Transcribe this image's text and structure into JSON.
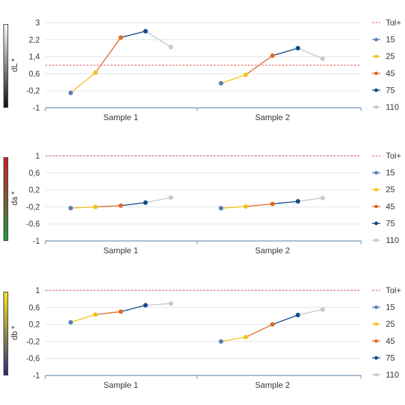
{
  "colors": {
    "15": "#5b7db8",
    "25": "#f4c21b",
    "45": "#e06a25",
    "75": "#0e4c8a",
    "110": "#c7c9cc",
    "tol": "#d94c4c",
    "grid": "#dfe3e8",
    "axis": "#6f8fb0",
    "text": "#333333"
  },
  "legend": {
    "tol_label": "Tol+",
    "items": [
      "15",
      "25",
      "45",
      "75",
      "110"
    ]
  },
  "chart_data": [
    {
      "type": "line",
      "ylabel": "dL *",
      "ylim": [
        -1,
        3
      ],
      "yticks": [
        "3",
        "2,2",
        "1,4",
        "0,6",
        "-0,2",
        "-1"
      ],
      "tolerance": 1.0,
      "categories": [
        "Sample 1",
        "Sample 2"
      ],
      "colorbar": [
        "#ffffff",
        "#111111"
      ],
      "series": [
        {
          "name": "15",
          "values": [
            -0.3,
            0.15
          ]
        },
        {
          "name": "25",
          "values": [
            0.65,
            0.55
          ]
        },
        {
          "name": "45",
          "values": [
            2.3,
            1.45
          ]
        },
        {
          "name": "75",
          "values": [
            2.6,
            1.8
          ]
        },
        {
          "name": "110",
          "values": [
            1.85,
            1.3
          ]
        }
      ]
    },
    {
      "type": "line",
      "ylabel": "da *",
      "ylim": [
        -1,
        1
      ],
      "yticks": [
        "1",
        "0,6",
        "0,2",
        "-0,2",
        "-0,6",
        "-1"
      ],
      "tolerance": 1.0,
      "categories": [
        "Sample 1",
        "Sample 2"
      ],
      "colorbar": [
        "#d01c28",
        "#1e9a3c"
      ],
      "series": [
        {
          "name": "15",
          "values": [
            -0.23,
            -0.23
          ]
        },
        {
          "name": "25",
          "values": [
            -0.2,
            -0.19
          ]
        },
        {
          "name": "45",
          "values": [
            -0.17,
            -0.13
          ]
        },
        {
          "name": "75",
          "values": [
            -0.1,
            -0.07
          ]
        },
        {
          "name": "110",
          "values": [
            0.02,
            0.01
          ]
        }
      ]
    },
    {
      "type": "line",
      "ylabel": "db *",
      "ylim": [
        -1,
        1
      ],
      "yticks": [
        "1",
        "0,6",
        "0,2",
        "-0,2",
        "-0,6",
        "-1"
      ],
      "tolerance": 1.0,
      "categories": [
        "Sample 1",
        "Sample 2"
      ],
      "colorbar": [
        "#f7e81a",
        "#2b2a7c"
      ],
      "series": [
        {
          "name": "15",
          "values": [
            0.25,
            -0.2
          ]
        },
        {
          "name": "25",
          "values": [
            0.43,
            -0.1
          ]
        },
        {
          "name": "45",
          "values": [
            0.5,
            0.2
          ]
        },
        {
          "name": "75",
          "values": [
            0.65,
            0.42
          ]
        },
        {
          "name": "110",
          "values": [
            0.69,
            0.55
          ]
        }
      ]
    }
  ]
}
